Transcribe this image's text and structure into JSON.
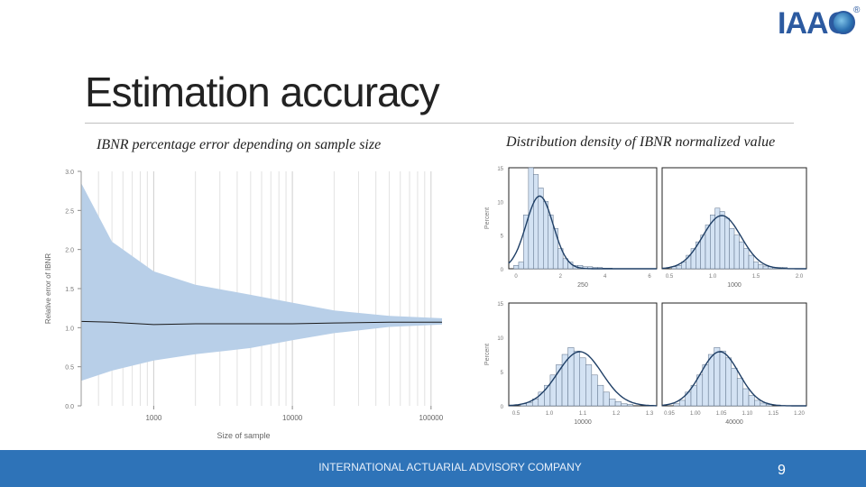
{
  "logo": {
    "text": "IAAC",
    "mark": "®"
  },
  "title": "Estimation accuracy",
  "left_subtitle": "IBNR percentage error depending on sample size",
  "right_subtitle": "Distribution density of IBNR normalized value",
  "footer": {
    "company": "INTERNATIONAL ACTUARIAL ADVISORY COMPANY",
    "page": "9"
  },
  "colors": {
    "band": "#b8cfe8",
    "line": "#1a1a1a",
    "footer": "#2e73b8",
    "hist_fill": "#d3e2f3",
    "curve": "#1f3f66"
  },
  "chart_data": [
    {
      "type": "area",
      "xlabel": "Size of sample",
      "ylabel": "Relative error of IBNR",
      "x_scale": "log",
      "xlim": [
        300,
        120000
      ],
      "ylim": [
        0,
        3.0
      ],
      "x_ticks": [
        "1000",
        "10000",
        "100000"
      ],
      "y_ticks": [
        "0.0",
        "0.5",
        "1.0",
        "1.5",
        "2.0",
        "2.5",
        "3.0"
      ],
      "grid": true,
      "series": [
        {
          "role": "upper",
          "x": [
            300,
            500,
            1000,
            2000,
            5000,
            10000,
            20000,
            50000,
            120000
          ],
          "values": [
            2.85,
            2.1,
            1.72,
            1.55,
            1.42,
            1.32,
            1.22,
            1.15,
            1.12
          ]
        },
        {
          "role": "lower",
          "x": [
            300,
            500,
            1000,
            2000,
            5000,
            10000,
            20000,
            50000,
            120000
          ],
          "values": [
            0.32,
            0.45,
            0.58,
            0.66,
            0.74,
            0.84,
            0.93,
            1.01,
            1.04
          ]
        },
        {
          "role": "median",
          "x": [
            300,
            500,
            1000,
            2000,
            5000,
            10000,
            20000,
            50000,
            120000
          ],
          "values": [
            1.08,
            1.07,
            1.04,
            1.05,
            1.05,
            1.05,
            1.06,
            1.07,
            1.07
          ]
        }
      ]
    },
    {
      "type": "bar",
      "panel": "250",
      "ylabel": "Percent",
      "xlim": [
        0,
        6
      ],
      "ylim": [
        0,
        15
      ],
      "x_ticks": [
        "0",
        "2",
        "4",
        "6"
      ],
      "y_ticks": [
        "0",
        "5",
        "10",
        "15"
      ],
      "bin_width": 0.2,
      "bin_start": 0.2,
      "values": [
        0.5,
        1,
        8,
        15,
        14,
        12,
        10,
        8,
        6,
        3,
        1.5,
        1,
        0.5,
        0.5,
        0.3,
        0.3,
        0.2,
        0.2,
        0.1,
        0.1
      ],
      "curve": {
        "mean": 1.25,
        "sd": 0.55,
        "peak": 10.8
      }
    },
    {
      "type": "bar",
      "panel": "1000",
      "ylabel": "",
      "xlim": [
        0.5,
        2.0
      ],
      "ylim": [
        0,
        15
      ],
      "x_ticks": [
        "0.5",
        "1.0",
        "1.5",
        "2.0"
      ],
      "y_ticks": [],
      "bin_width": 0.05,
      "bin_start": 0.6,
      "values": [
        0.3,
        0.5,
        1,
        2,
        3,
        4,
        5,
        6.5,
        8,
        9,
        8.5,
        7.5,
        6,
        5,
        4,
        3,
        2,
        1,
        0.6,
        0.4,
        0.3,
        0.2,
        0.2,
        0.2
      ],
      "curve": {
        "mean": 1.12,
        "sd": 0.2,
        "peak": 7.9
      }
    },
    {
      "type": "bar",
      "panel": "10000",
      "ylabel": "Percent",
      "xlim": [
        0.8,
        1.3
      ],
      "ylim": [
        0,
        15
      ],
      "x_ticks": [
        "0.5",
        "1.0",
        "1.1",
        "1.2",
        "1.3"
      ],
      "y_ticks": [
        "0",
        "5",
        "10",
        "15"
      ],
      "bin_width": 0.02,
      "bin_start": 0.84,
      "values": [
        0.3,
        0.5,
        1,
        2,
        3,
        4.5,
        6,
        7.5,
        8.5,
        8,
        7,
        6,
        4.5,
        3,
        2,
        1,
        0.6,
        0.3,
        0.2
      ],
      "curve": {
        "mean": 1.04,
        "sd": 0.075,
        "peak": 7.9
      }
    },
    {
      "type": "bar",
      "panel": "40000",
      "ylabel": "",
      "xlim": [
        0.95,
        1.2
      ],
      "ylim": [
        0,
        15
      ],
      "x_ticks": [
        "0.95",
        "1.00",
        "1.05",
        "1.10",
        "1.15",
        "1.20"
      ],
      "y_ticks": [],
      "bin_width": 0.01,
      "bin_start": 0.97,
      "values": [
        0.3,
        0.8,
        2,
        3,
        4.5,
        6,
        7.5,
        8.5,
        8,
        7,
        5.5,
        4,
        2.5,
        1.5,
        0.8,
        0.4,
        0.2
      ],
      "curve": {
        "mean": 1.05,
        "sd": 0.033,
        "peak": 7.9
      }
    }
  ]
}
